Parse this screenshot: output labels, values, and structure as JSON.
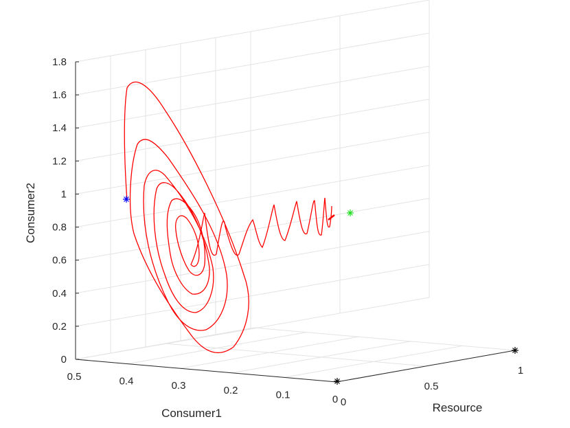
{
  "chart_data": {
    "type": "line3d",
    "title": "",
    "xlabel": "Resource",
    "ylabel": "Consumer1",
    "zlabel": "Consumer2",
    "xlim": [
      0,
      1
    ],
    "ylim": [
      0,
      0.5
    ],
    "zlim": [
      0,
      1.8
    ],
    "x_ticks": [
      "0",
      "0.5",
      "1"
    ],
    "y_ticks": [
      "0",
      "0.1",
      "0.2",
      "0.3",
      "0.4",
      "0.5"
    ],
    "z_ticks": [
      "0",
      "0.2",
      "0.4",
      "0.6",
      "0.8",
      "1",
      "1.2",
      "1.4",
      "1.6",
      "1.8"
    ],
    "grid": true,
    "series": [
      {
        "color": "#ff0000",
        "type": "trajectory",
        "points_approx": "damped oscillation spiralling from the blue start marker near (0.02, 0.40, 0.97) to the green equilibrium near (0.95, 0.02, 0.88)"
      }
    ],
    "markers": [
      {
        "label": "start",
        "color": "#0000ff",
        "x": 0.02,
        "y": 0.4,
        "z": 0.97
      },
      {
        "label": "equilibrium",
        "color": "#00dd00",
        "x": 0.95,
        "y": 0.02,
        "z": 0.88
      },
      {
        "label": "origin",
        "color": "#000000",
        "x": 0,
        "y": 0,
        "z": 0
      },
      {
        "label": "resource-only",
        "color": "#000000",
        "x": 1,
        "y": 0,
        "z": 0
      }
    ]
  }
}
